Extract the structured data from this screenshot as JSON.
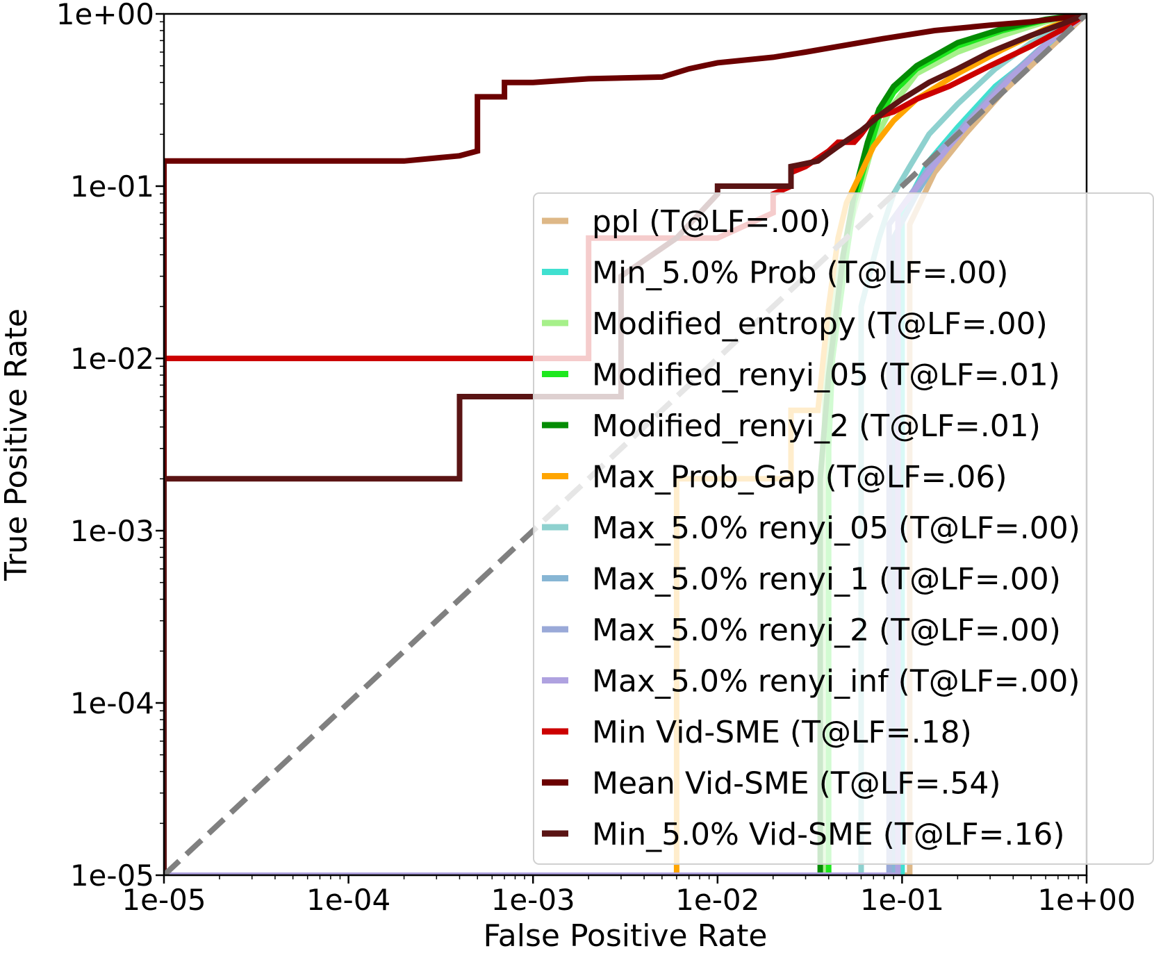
{
  "chart_data": {
    "type": "line",
    "scale": "log-log",
    "title": "",
    "xlabel": "False Positive Rate",
    "ylabel": "True Positive Rate",
    "xlim": [
      1e-05,
      1
    ],
    "ylim": [
      1e-05,
      1
    ],
    "x_ticks": [
      {
        "value": 1e-05,
        "label": "1e-05"
      },
      {
        "value": 0.0001,
        "label": "1e-04"
      },
      {
        "value": 0.001,
        "label": "1e-03"
      },
      {
        "value": 0.01,
        "label": "1e-02"
      },
      {
        "value": 0.1,
        "label": "1e-01"
      },
      {
        "value": 1,
        "label": "1e+00"
      }
    ],
    "y_ticks": [
      {
        "value": 1e-05,
        "label": "1e-05"
      },
      {
        "value": 0.0001,
        "label": "1e-04"
      },
      {
        "value": 0.001,
        "label": "1e-03"
      },
      {
        "value": 0.01,
        "label": "1e-02"
      },
      {
        "value": 0.1,
        "label": "1e-01"
      },
      {
        "value": 1,
        "label": "1e+00"
      }
    ],
    "legend_position": "lower-right",
    "diagonal": {
      "style": "dashed",
      "color": "#808080",
      "points": [
        [
          1e-05,
          1e-05
        ],
        [
          1,
          1
        ]
      ]
    },
    "series": [
      {
        "name": "ppl (T@LF=.00)",
        "color": "#deb887",
        "points": [
          [
            1e-05,
            1e-05
          ],
          [
            0.11,
            1e-05
          ],
          [
            0.11,
            0.06
          ],
          [
            0.15,
            0.12
          ],
          [
            0.22,
            0.2
          ],
          [
            0.35,
            0.35
          ],
          [
            0.55,
            0.55
          ],
          [
            0.8,
            0.8
          ],
          [
            1,
            1
          ]
        ]
      },
      {
        "name": "Min_5.0% Prob (T@LF=.00)",
        "color": "#40e0d0",
        "points": [
          [
            1e-05,
            1e-05
          ],
          [
            0.1,
            1e-05
          ],
          [
            0.1,
            0.07
          ],
          [
            0.14,
            0.14
          ],
          [
            0.2,
            0.22
          ],
          [
            0.32,
            0.38
          ],
          [
            0.55,
            0.6
          ],
          [
            0.8,
            0.85
          ],
          [
            1,
            1
          ]
        ]
      },
      {
        "name": "Modified_entropy (T@LF=.00)",
        "color": "#a6f08a",
        "points": [
          [
            1e-05,
            1e-05
          ],
          [
            0.038,
            1e-05
          ],
          [
            0.038,
            0.008
          ],
          [
            0.045,
            0.03
          ],
          [
            0.05,
            0.05
          ],
          [
            0.06,
            0.1
          ],
          [
            0.07,
            0.18
          ],
          [
            0.09,
            0.3
          ],
          [
            0.12,
            0.45
          ],
          [
            0.2,
            0.6
          ],
          [
            0.35,
            0.75
          ],
          [
            0.6,
            0.9
          ],
          [
            1,
            1
          ]
        ]
      },
      {
        "name": "Modified_renyi_05 (T@LF=.01)",
        "color": "#1ee81e",
        "points": [
          [
            1e-05,
            1e-05
          ],
          [
            0.04,
            1e-05
          ],
          [
            0.04,
            0.003
          ],
          [
            0.042,
            0.01
          ],
          [
            0.05,
            0.04
          ],
          [
            0.055,
            0.08
          ],
          [
            0.065,
            0.15
          ],
          [
            0.075,
            0.25
          ],
          [
            0.09,
            0.35
          ],
          [
            0.12,
            0.48
          ],
          [
            0.2,
            0.65
          ],
          [
            0.35,
            0.8
          ],
          [
            0.6,
            0.92
          ],
          [
            1,
            1
          ]
        ]
      },
      {
        "name": "Modified_renyi_2 (T@LF=.01)",
        "color": "#048c04",
        "points": [
          [
            1e-05,
            1e-05
          ],
          [
            0.036,
            1e-05
          ],
          [
            0.036,
            0.002
          ],
          [
            0.04,
            0.008
          ],
          [
            0.048,
            0.04
          ],
          [
            0.055,
            0.09
          ],
          [
            0.065,
            0.18
          ],
          [
            0.075,
            0.28
          ],
          [
            0.09,
            0.38
          ],
          [
            0.12,
            0.5
          ],
          [
            0.2,
            0.68
          ],
          [
            0.35,
            0.82
          ],
          [
            0.6,
            0.93
          ],
          [
            1,
            1
          ]
        ]
      },
      {
        "name": "Max_Prob_Gap (T@LF=.06)",
        "color": "#ffa500",
        "points": [
          [
            1e-05,
            1e-05
          ],
          [
            0.006,
            1e-05
          ],
          [
            0.006,
            0.002
          ],
          [
            0.025,
            0.002
          ],
          [
            0.025,
            0.005
          ],
          [
            0.035,
            0.005
          ],
          [
            0.04,
            0.02
          ],
          [
            0.045,
            0.05
          ],
          [
            0.05,
            0.08
          ],
          [
            0.06,
            0.12
          ],
          [
            0.07,
            0.17
          ],
          [
            0.09,
            0.24
          ],
          [
            0.12,
            0.32
          ],
          [
            0.2,
            0.45
          ],
          [
            0.35,
            0.62
          ],
          [
            0.6,
            0.82
          ],
          [
            1,
            1
          ]
        ]
      },
      {
        "name": "Max_5.0% renyi_05 (T@LF=.00)",
        "color": "#8ed1cf",
        "points": [
          [
            1e-05,
            1e-05
          ],
          [
            0.06,
            1e-05
          ],
          [
            0.06,
            0.02
          ],
          [
            0.075,
            0.05
          ],
          [
            0.09,
            0.09
          ],
          [
            0.11,
            0.13
          ],
          [
            0.14,
            0.2
          ],
          [
            0.2,
            0.3
          ],
          [
            0.32,
            0.48
          ],
          [
            0.5,
            0.68
          ],
          [
            0.75,
            0.85
          ],
          [
            1,
            1
          ]
        ]
      },
      {
        "name": "Max_5.0% renyi_1 (T@LF=.00)",
        "color": "#87b6d4",
        "points": [
          [
            1e-05,
            1e-05
          ],
          [
            0.09,
            1e-05
          ],
          [
            0.09,
            0.05
          ],
          [
            0.12,
            0.09
          ],
          [
            0.16,
            0.15
          ],
          [
            0.22,
            0.23
          ],
          [
            0.35,
            0.4
          ],
          [
            0.55,
            0.62
          ],
          [
            0.8,
            0.85
          ],
          [
            1,
            1
          ]
        ]
      },
      {
        "name": "Max_5.0% renyi_2 (T@LF=.00)",
        "color": "#9aa9d8",
        "points": [
          [
            1e-05,
            1e-05
          ],
          [
            0.085,
            1e-05
          ],
          [
            0.085,
            0.06
          ],
          [
            0.12,
            0.1
          ],
          [
            0.16,
            0.16
          ],
          [
            0.24,
            0.25
          ],
          [
            0.38,
            0.42
          ],
          [
            0.58,
            0.64
          ],
          [
            0.82,
            0.86
          ],
          [
            1,
            1
          ]
        ]
      },
      {
        "name": "Max_5.0% renyi_inf (T@LF=.00)",
        "color": "#afa2e0",
        "points": [
          [
            1e-05,
            1e-05
          ],
          [
            0.095,
            1e-05
          ],
          [
            0.095,
            0.07
          ],
          [
            0.13,
            0.11
          ],
          [
            0.18,
            0.17
          ],
          [
            0.26,
            0.27
          ],
          [
            0.4,
            0.44
          ],
          [
            0.6,
            0.66
          ],
          [
            0.85,
            0.88
          ],
          [
            1,
            1
          ]
        ]
      },
      {
        "name": "Min Vid-SME (T@LF=.18)",
        "color": "#cc0000",
        "points": [
          [
            1e-05,
            1e-05
          ],
          [
            1e-05,
            0.01
          ],
          [
            0.002,
            0.01
          ],
          [
            0.002,
            0.05
          ],
          [
            0.01,
            0.05
          ],
          [
            0.02,
            0.07
          ],
          [
            0.02,
            0.09
          ],
          [
            0.025,
            0.1
          ],
          [
            0.025,
            0.12
          ],
          [
            0.03,
            0.13
          ],
          [
            0.04,
            0.16
          ],
          [
            0.045,
            0.18
          ],
          [
            0.055,
            0.18
          ],
          [
            0.06,
            0.2
          ],
          [
            0.07,
            0.25
          ],
          [
            0.09,
            0.27
          ],
          [
            0.12,
            0.32
          ],
          [
            0.18,
            0.38
          ],
          [
            0.3,
            0.5
          ],
          [
            0.5,
            0.65
          ],
          [
            0.75,
            0.82
          ],
          [
            1,
            1
          ]
        ]
      },
      {
        "name": "Mean Vid-SME (T@LF=.54)",
        "color": "#6b0000",
        "points": [
          [
            1e-05,
            1e-05
          ],
          [
            1e-05,
            0.14
          ],
          [
            0.0002,
            0.14
          ],
          [
            0.0004,
            0.15
          ],
          [
            0.0005,
            0.16
          ],
          [
            0.0005,
            0.33
          ],
          [
            0.0007,
            0.33
          ],
          [
            0.0007,
            0.4
          ],
          [
            0.001,
            0.4
          ],
          [
            0.002,
            0.42
          ],
          [
            0.005,
            0.43
          ],
          [
            0.007,
            0.48
          ],
          [
            0.01,
            0.52
          ],
          [
            0.02,
            0.56
          ],
          [
            0.03,
            0.6
          ],
          [
            0.05,
            0.66
          ],
          [
            0.08,
            0.72
          ],
          [
            0.15,
            0.8
          ],
          [
            0.3,
            0.86
          ],
          [
            0.5,
            0.9
          ],
          [
            0.75,
            0.95
          ],
          [
            1,
            1
          ]
        ]
      },
      {
        "name": "Min_5.0% Vid-SME (T@LF=.16)",
        "color": "#5a1414",
        "points": [
          [
            1e-05,
            1e-05
          ],
          [
            1e-05,
            0.002
          ],
          [
            0.0004,
            0.002
          ],
          [
            0.0004,
            0.006
          ],
          [
            0.003,
            0.006
          ],
          [
            0.003,
            0.03
          ],
          [
            0.006,
            0.05
          ],
          [
            0.01,
            0.09
          ],
          [
            0.01,
            0.1
          ],
          [
            0.025,
            0.1
          ],
          [
            0.025,
            0.13
          ],
          [
            0.035,
            0.14
          ],
          [
            0.045,
            0.17
          ],
          [
            0.06,
            0.21
          ],
          [
            0.08,
            0.27
          ],
          [
            0.1,
            0.32
          ],
          [
            0.14,
            0.4
          ],
          [
            0.2,
            0.48
          ],
          [
            0.3,
            0.6
          ],
          [
            0.5,
            0.75
          ],
          [
            0.75,
            0.88
          ],
          [
            1,
            1
          ]
        ]
      }
    ]
  }
}
